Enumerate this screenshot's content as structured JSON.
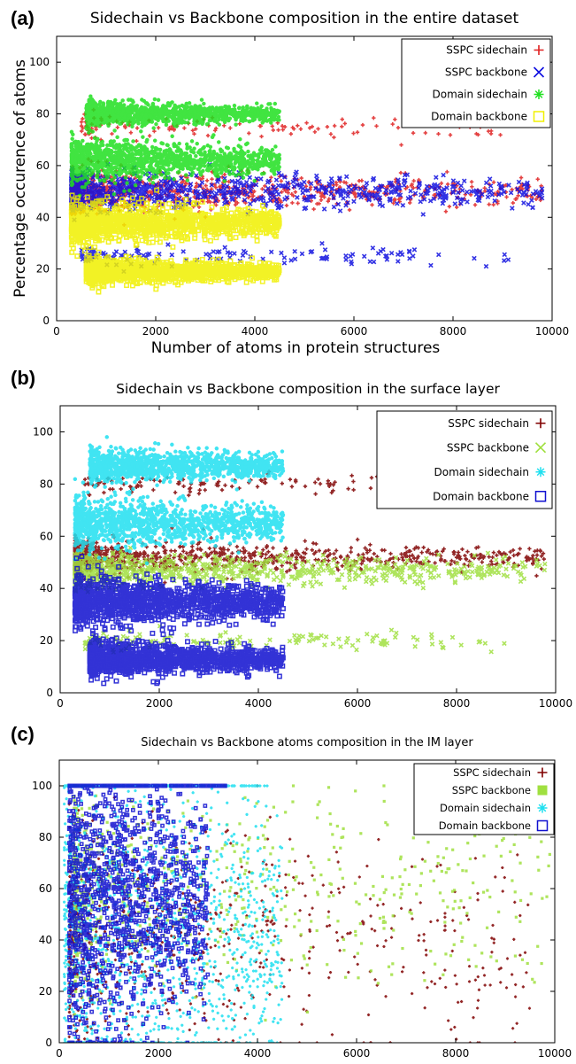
{
  "chart_data": [
    {
      "type": "scatter",
      "panel_label": "(a)",
      "title": "Sidechain vs Backbone composition in the entire dataset",
      "xlabel": "Number of atoms in protein structures",
      "ylabel": "Percentage occurence of atoms",
      "xlim": [
        0,
        10000
      ],
      "ylim": [
        0,
        110
      ],
      "xticks": [
        "0",
        "2000",
        "4000",
        "6000",
        "8000",
        "10000"
      ],
      "yticks": [
        "0",
        "20",
        "40",
        "60",
        "80",
        "100"
      ],
      "legend_position": "top-right",
      "series": [
        {
          "name": "SSPC sidechain",
          "marker": "+",
          "color": "#e02020",
          "clusters": [
            {
              "x": [
                500,
                9000
              ],
              "y_center": 75,
              "y_spread": 2,
              "density": "sparse"
            },
            {
              "x": [
                300,
                9800
              ],
              "y_center": 50,
              "y_spread": 2.5,
              "density": "dense-left"
            }
          ]
        },
        {
          "name": "SSPC backbone",
          "marker": "x",
          "color": "#1010e0",
          "clusters": [
            {
              "x": [
                300,
                9800
              ],
              "y_center": 50,
              "y_spread": 2.5,
              "density": "dense-left"
            },
            {
              "x": [
                500,
                9300
              ],
              "y_center": 25,
              "y_spread": 2,
              "density": "sparse"
            }
          ]
        },
        {
          "name": "Domain sidechain",
          "marker": "*",
          "color": "#20e020",
          "clusters": [
            {
              "x": [
                600,
                4500
              ],
              "y_center": 80,
              "y_spread": 1.5,
              "density": "dense"
            },
            {
              "x": [
                300,
                4500
              ],
              "y_center": 62,
              "y_spread": 2.5,
              "density": "dense"
            }
          ]
        },
        {
          "name": "Domain backbone",
          "marker": "square",
          "color": "#f0f000",
          "clusters": [
            {
              "x": [
                300,
                4500
              ],
              "y_center": 38,
              "y_spread": 2.5,
              "density": "dense"
            },
            {
              "x": [
                600,
                4500
              ],
              "y_center": 19,
              "y_spread": 1.5,
              "density": "dense"
            }
          ]
        }
      ]
    },
    {
      "type": "scatter",
      "panel_label": "(b)",
      "title": "Sidechain vs Backbone composition in the surface layer",
      "xlabel": "",
      "ylabel": "",
      "xlim": [
        0,
        10000
      ],
      "ylim": [
        0,
        110
      ],
      "xticks": [
        "0",
        "2000",
        "4000",
        "6000",
        "8000",
        "10000"
      ],
      "yticks": [
        "0",
        "20",
        "40",
        "60",
        "80",
        "100"
      ],
      "legend_position": "top-right",
      "series": [
        {
          "name": "SSPC sidechain",
          "marker": "+",
          "color": "#800000",
          "clusters": [
            {
              "x": [
                500,
                9000
              ],
              "y_center": 80,
              "y_spread": 2,
              "density": "sparse"
            },
            {
              "x": [
                300,
                9800
              ],
              "y_center": 52,
              "y_spread": 2,
              "density": "dense-left"
            }
          ]
        },
        {
          "name": "SSPC backbone",
          "marker": "x",
          "color": "#a0e040",
          "clusters": [
            {
              "x": [
                300,
                9800
              ],
              "y_center": 47,
              "y_spread": 2,
              "density": "dense-left"
            },
            {
              "x": [
                500,
                9000
              ],
              "y_center": 20,
              "y_spread": 2,
              "density": "sparse"
            }
          ]
        },
        {
          "name": "Domain sidechain",
          "marker": "*",
          "color": "#20e0f0",
          "clusters": [
            {
              "x": [
                600,
                4500
              ],
              "y_center": 87,
              "y_spread": 2,
              "density": "dense"
            },
            {
              "x": [
                300,
                4500
              ],
              "y_center": 65,
              "y_spread": 3,
              "density": "dense"
            }
          ]
        },
        {
          "name": "Domain backbone",
          "marker": "square",
          "color": "#1010d0",
          "clusters": [
            {
              "x": [
                300,
                4500
              ],
              "y_center": 35,
              "y_spread": 3,
              "density": "dense"
            },
            {
              "x": [
                600,
                4500
              ],
              "y_center": 13,
              "y_spread": 2,
              "density": "dense"
            }
          ]
        }
      ]
    },
    {
      "type": "scatter",
      "panel_label": "(c)",
      "title": "Sidechain vs Backbone atoms composition in the IM layer",
      "xlabel": "",
      "ylabel": "",
      "xlim": [
        0,
        10000
      ],
      "ylim": [
        0,
        110
      ],
      "xticks": [
        "0",
        "2000",
        "4000",
        "6000",
        "8000",
        "10000"
      ],
      "yticks": [
        "0",
        "20",
        "40",
        "60",
        "80",
        "100"
      ],
      "legend_position": "top-right",
      "series": [
        {
          "name": "SSPC sidechain",
          "marker": "+",
          "color": "#800000",
          "clusters": [
            {
              "x": [
                200,
                9500
              ],
              "y_center": 40,
              "y_spread": 22,
              "density": "diffuse"
            }
          ]
        },
        {
          "name": "SSPC backbone",
          "marker": "square-filled",
          "color": "#a0e040",
          "clusters": [
            {
              "x": [
                300,
                9900
              ],
              "y_center": 58,
              "y_spread": 20,
              "density": "diffuse"
            }
          ]
        },
        {
          "name": "Domain sidechain",
          "marker": "*",
          "color": "#20e0f0",
          "clusters": [
            {
              "x": [
                100,
                4500
              ],
              "y_center": 40,
              "y_spread": 25,
              "density": "dense"
            }
          ]
        },
        {
          "name": "Domain backbone",
          "marker": "square",
          "color": "#1010d0",
          "clusters": [
            {
              "x": [
                200,
                3000
              ],
              "y_center": 55,
              "y_spread": 18,
              "density": "dense"
            }
          ]
        }
      ]
    }
  ]
}
